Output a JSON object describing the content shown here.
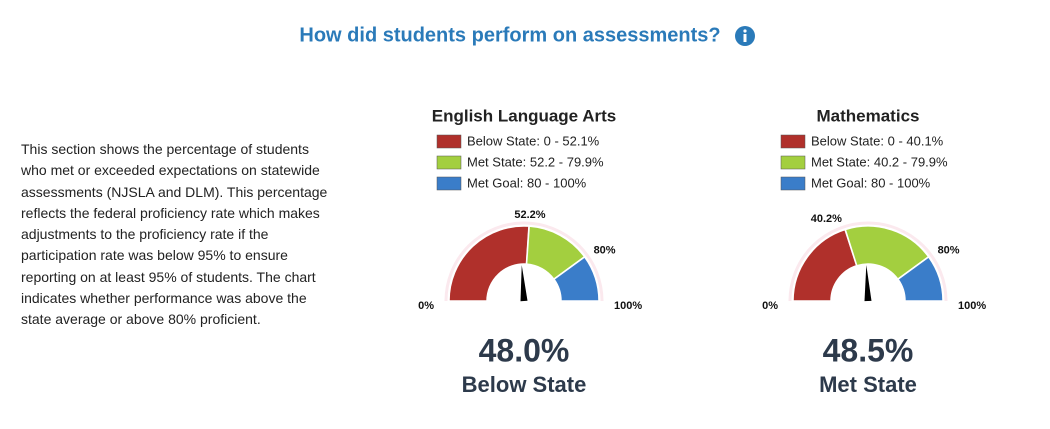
{
  "header": {
    "title": "How did students perform on assessments?"
  },
  "description": "This section shows the percentage of students who met or exceeded expectations on statewide assessments (NJSLA and DLM). This percentage reflects the federal proficiency rate which makes adjustments to the proficiency rate if the participation rate was below 95% to ensure reporting on at least 95% of students. The chart indicates whether performance was above the state average or above 80% proficient.",
  "chart_data": [
    {
      "type": "gauge",
      "title": "English Language Arts",
      "ylim": [
        0,
        100
      ],
      "series": [
        {
          "name": "Below State: 0 - 52.1%",
          "color": "#b0302b",
          "range": [
            0,
            52.1
          ]
        },
        {
          "name": "Met State: 52.2 - 79.9%",
          "color": "#a3cf3f",
          "range": [
            52.2,
            79.9
          ]
        },
        {
          "name": "Met Goal: 80 - 100%",
          "color": "#3a7dc9",
          "range": [
            80,
            100
          ]
        }
      ],
      "yticks": [
        {
          "value": 0,
          "label": "0%"
        },
        {
          "value": 52.2,
          "label": "52.2%"
        },
        {
          "value": 80,
          "label": "80%"
        },
        {
          "value": 100,
          "label": "100%"
        }
      ],
      "value": 48.0,
      "value_label": "48.0%",
      "status": "Below State"
    },
    {
      "type": "gauge",
      "title": "Mathematics",
      "ylim": [
        0,
        100
      ],
      "series": [
        {
          "name": "Below State: 0 - 40.1%",
          "color": "#b0302b",
          "range": [
            0,
            40.1
          ]
        },
        {
          "name": "Met State: 40.2 - 79.9%",
          "color": "#a3cf3f",
          "range": [
            40.2,
            79.9
          ]
        },
        {
          "name": "Met Goal: 80 - 100%",
          "color": "#3a7dc9",
          "range": [
            80,
            100
          ]
        }
      ],
      "yticks": [
        {
          "value": 0,
          "label": "0%"
        },
        {
          "value": 40.2,
          "label": "40.2%"
        },
        {
          "value": 80,
          "label": "80%"
        },
        {
          "value": 100,
          "label": "100%"
        }
      ],
      "value": 48.5,
      "value_label": "48.5%",
      "status": "Met State"
    }
  ]
}
